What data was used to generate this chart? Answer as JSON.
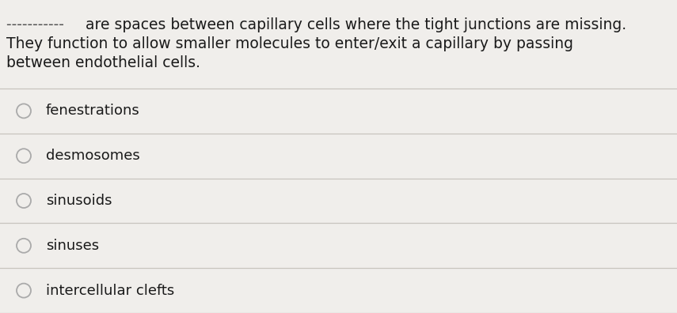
{
  "question_line1_dash": "----------- ",
  "question_line1_text": "are spaces between capillary cells where the tight junctions are missing.",
  "question_line2": "They function to allow smaller molecules to enter/exit a capillary by passing",
  "question_line3": "between endothelial cells.",
  "options": [
    "fenestrations",
    "desmosomes",
    "sinusoids",
    "sinuses",
    "intercellular clefts"
  ],
  "bg_color": "#f0eeeb",
  "text_color": "#1a1a1a",
  "dash_color": "#555555",
  "line_color": "#c8c4be",
  "radio_color": "#aaaaaa",
  "font_size_question": 13.5,
  "font_size_option": 13.0,
  "figwidth": 8.55,
  "figheight": 3.96,
  "dpi": 100
}
